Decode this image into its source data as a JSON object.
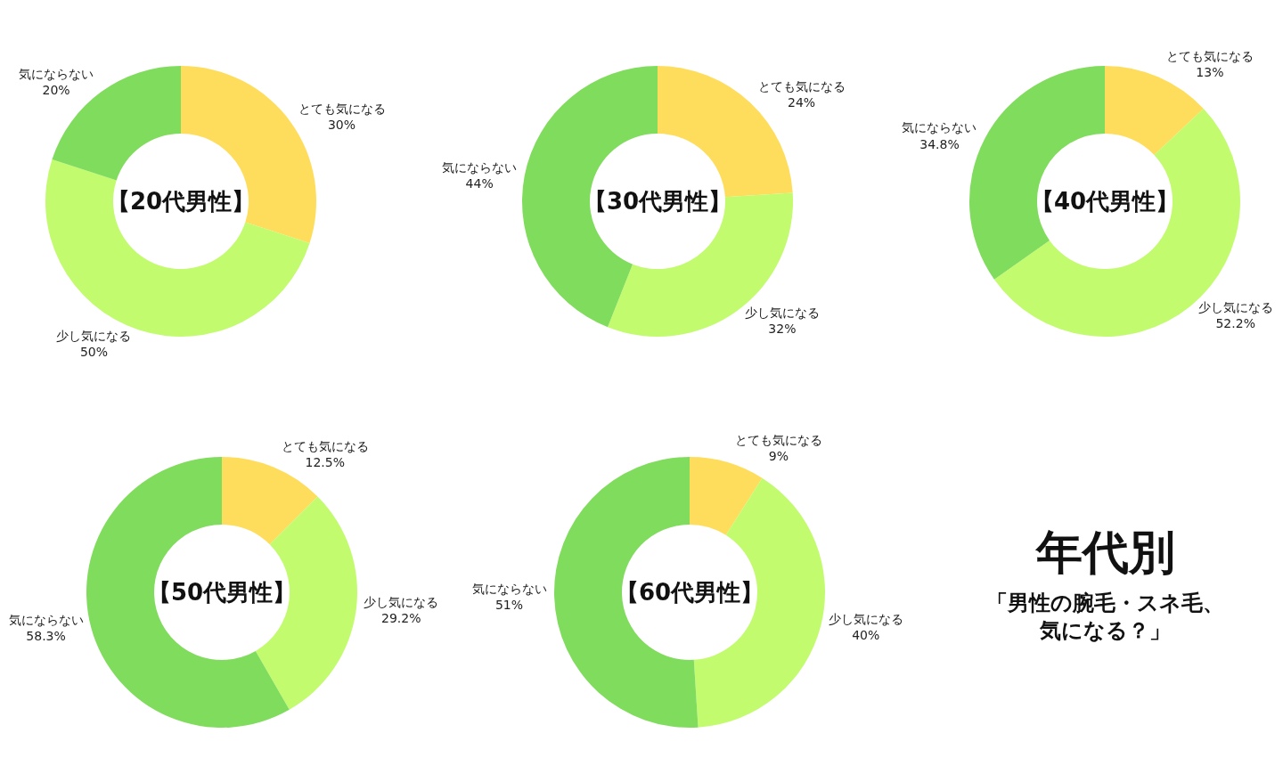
{
  "chart_data": [
    {
      "type": "donut",
      "title": "【20代男性】",
      "categories": [
        "とても気になる",
        "少し気になる",
        "気にならない"
      ],
      "values": [
        30,
        50,
        20
      ],
      "value_labels": [
        "30%",
        "50%",
        "20%"
      ],
      "colors": [
        "#ffdd5c",
        "#c2fb6e",
        "#80dc5c"
      ]
    },
    {
      "type": "donut",
      "title": "【30代男性】",
      "categories": [
        "とても気になる",
        "少し気になる",
        "気にならない"
      ],
      "values": [
        24,
        32,
        44
      ],
      "value_labels": [
        "24%",
        "32%",
        "44%"
      ],
      "colors": [
        "#ffdd5c",
        "#c2fb6e",
        "#80dc5c"
      ]
    },
    {
      "type": "donut",
      "title": "【40代男性】",
      "categories": [
        "とても気になる",
        "少し気になる",
        "気にならない"
      ],
      "values": [
        13,
        52.2,
        34.8
      ],
      "value_labels": [
        "13%",
        "52.2%",
        "34.8%"
      ],
      "colors": [
        "#ffdd5c",
        "#c2fb6e",
        "#80dc5c"
      ]
    },
    {
      "type": "donut",
      "title": "【50代男性】",
      "categories": [
        "とても気になる",
        "少し気になる",
        "気にならない"
      ],
      "values": [
        12.5,
        29.2,
        58.3
      ],
      "value_labels": [
        "12.5%",
        "29.2%",
        "58.3%"
      ],
      "colors": [
        "#ffdd5c",
        "#c2fb6e",
        "#80dc5c"
      ]
    },
    {
      "type": "donut",
      "title": "【60代男性】",
      "categories": [
        "とても気になる",
        "少し気になる",
        "気にならない"
      ],
      "values": [
        9,
        40,
        51
      ],
      "value_labels": [
        "9%",
        "40%",
        "51%"
      ],
      "colors": [
        "#ffdd5c",
        "#c2fb6e",
        "#80dc5c"
      ]
    },
    {
      "type": "other",
      "title": "年代別",
      "subtitle": "「男性の腕毛・スネ毛、気になる？」"
    }
  ]
}
